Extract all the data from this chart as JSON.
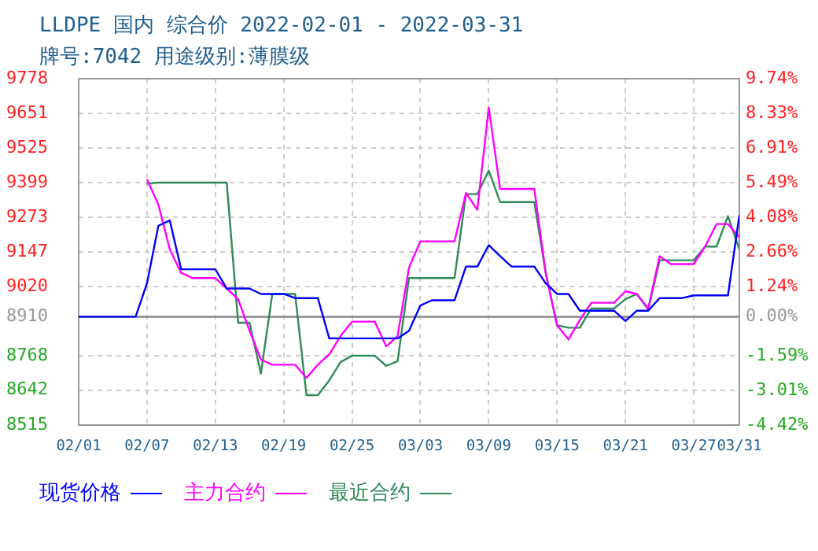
{
  "chart_data": {
    "type": "line",
    "title": "LLDPE 国内 综合价 2022-02-01 - 2022-03-31",
    "subtitle": "牌号:7042 用途级别:薄膜级",
    "x": [
      "2022-02-01",
      "2022-02-02",
      "2022-02-03",
      "2022-02-04",
      "2022-02-05",
      "2022-02-06",
      "2022-02-07",
      "2022-02-08",
      "2022-02-09",
      "2022-02-10",
      "2022-02-11",
      "2022-02-12",
      "2022-02-13",
      "2022-02-14",
      "2022-02-15",
      "2022-02-16",
      "2022-02-17",
      "2022-02-18",
      "2022-02-19",
      "2022-02-20",
      "2022-02-21",
      "2022-02-22",
      "2022-02-23",
      "2022-02-24",
      "2022-02-25",
      "2022-02-26",
      "2022-02-27",
      "2022-02-28",
      "2022-03-01",
      "2022-03-02",
      "2022-03-03",
      "2022-03-04",
      "2022-03-05",
      "2022-03-06",
      "2022-03-07",
      "2022-03-08",
      "2022-03-09",
      "2022-03-10",
      "2022-03-11",
      "2022-03-12",
      "2022-03-13",
      "2022-03-14",
      "2022-03-15",
      "2022-03-16",
      "2022-03-17",
      "2022-03-18",
      "2022-03-19",
      "2022-03-20",
      "2022-03-21",
      "2022-03-22",
      "2022-03-23",
      "2022-03-24",
      "2022-03-25",
      "2022-03-26",
      "2022-03-27",
      "2022-03-28",
      "2022-03-29",
      "2022-03-30",
      "2022-03-31"
    ],
    "series": [
      {
        "name": "现货价格",
        "color": "#0000ff",
        "values": [
          8910,
          8910,
          8910,
          8910,
          8910,
          8910,
          9032,
          9242,
          9261,
          9083,
          9083,
          9083,
          9083,
          9013,
          9013,
          9013,
          8993,
          8993,
          8993,
          8978,
          8978,
          8978,
          8831,
          8831,
          8831,
          8831,
          8831,
          8831,
          8831,
          8859,
          8951,
          8970,
          8970,
          8970,
          9093,
          9093,
          9171,
          9131,
          9093,
          9093,
          9093,
          9032,
          8993,
          8993,
          8932,
          8932,
          8932,
          8932,
          8894,
          8932,
          8932,
          8978,
          8978,
          8978,
          8988,
          8988,
          8988,
          8988,
          9280
        ]
      },
      {
        "name": "主力合约",
        "color": "#ff00ff",
        "values": [
          null,
          null,
          null,
          null,
          null,
          null,
          9411,
          9319,
          9156,
          9070,
          9051,
          9051,
          9051,
          9013,
          8974,
          8859,
          8754,
          8735,
          8735,
          8735,
          8687,
          8735,
          8773,
          8840,
          8892,
          8892,
          8892,
          8802,
          8840,
          9089,
          9185,
          9185,
          9185,
          9185,
          9361,
          9300,
          9673,
          9376,
          9376,
          9376,
          9376,
          9070,
          8879,
          8827,
          8898,
          8961,
          8961,
          8961,
          9003,
          8993,
          8940,
          9131,
          9102,
          9102,
          9102,
          9166,
          9248,
          9248,
          9200
        ]
      },
      {
        "name": "最近合约",
        "color": "#2e8b57",
        "values": [
          null,
          null,
          null,
          null,
          null,
          null,
          9395,
          9399,
          9399,
          9399,
          9399,
          9399,
          9399,
          9399,
          8888,
          8888,
          8703,
          8993,
          8993,
          8993,
          8624,
          8624,
          8678,
          8745,
          8768,
          8768,
          8768,
          8731,
          8748,
          9051,
          9051,
          9051,
          9051,
          9051,
          9357,
          9357,
          9443,
          9328,
          9328,
          9328,
          9328,
          9070,
          8879,
          8870,
          8870,
          8940,
          8940,
          8940,
          8974,
          8993,
          8936,
          9116,
          9116,
          9116,
          9116,
          9166,
          9166,
          9277,
          9156
        ]
      }
    ],
    "xlim": [
      "2022-02-01",
      "2022-03-31"
    ],
    "xticks": [
      {
        "value": "2022-02-01",
        "label": "02/01"
      },
      {
        "value": "2022-02-07",
        "label": "02/07"
      },
      {
        "value": "2022-02-13",
        "label": "02/13"
      },
      {
        "value": "2022-02-19",
        "label": "02/19"
      },
      {
        "value": "2022-02-25",
        "label": "02/25"
      },
      {
        "value": "2022-03-03",
        "label": "03/03"
      },
      {
        "value": "2022-03-09",
        "label": "03/09"
      },
      {
        "value": "2022-03-15",
        "label": "03/15"
      },
      {
        "value": "2022-03-21",
        "label": "03/21"
      },
      {
        "value": "2022-03-27",
        "label": "03/27"
      },
      {
        "value": "2022-03-31",
        "label": "03/31"
      }
    ],
    "ylim": [
      8515,
      9778
    ],
    "yticks": [
      8515,
      8642,
      8768,
      8910,
      9020,
      9147,
      9273,
      9399,
      9525,
      9651,
      9778
    ],
    "y2lim": [
      -4.42,
      9.74
    ],
    "y2ticks": [
      {
        "value": -4.42,
        "label": "-4.42%"
      },
      {
        "value": -3.01,
        "label": "-3.01%"
      },
      {
        "value": -1.59,
        "label": "-1.59%"
      },
      {
        "value": 0,
        "label": "0.00%"
      },
      {
        "value": 1.24,
        "label": "1.24%"
      },
      {
        "value": 2.66,
        "label": "2.66%"
      },
      {
        "value": 4.08,
        "label": "4.08%"
      },
      {
        "value": 5.49,
        "label": "5.49%"
      },
      {
        "value": 6.91,
        "label": "6.91%"
      },
      {
        "value": 8.33,
        "label": "8.33%"
      },
      {
        "value": 9.74,
        "label": "9.74%"
      }
    ],
    "ref_lines": [
      {
        "axis": "y",
        "value": 8910,
        "color": "#999999"
      }
    ],
    "grid": true,
    "legend": "bottom",
    "marker": "none",
    "line_style": "solid"
  }
}
